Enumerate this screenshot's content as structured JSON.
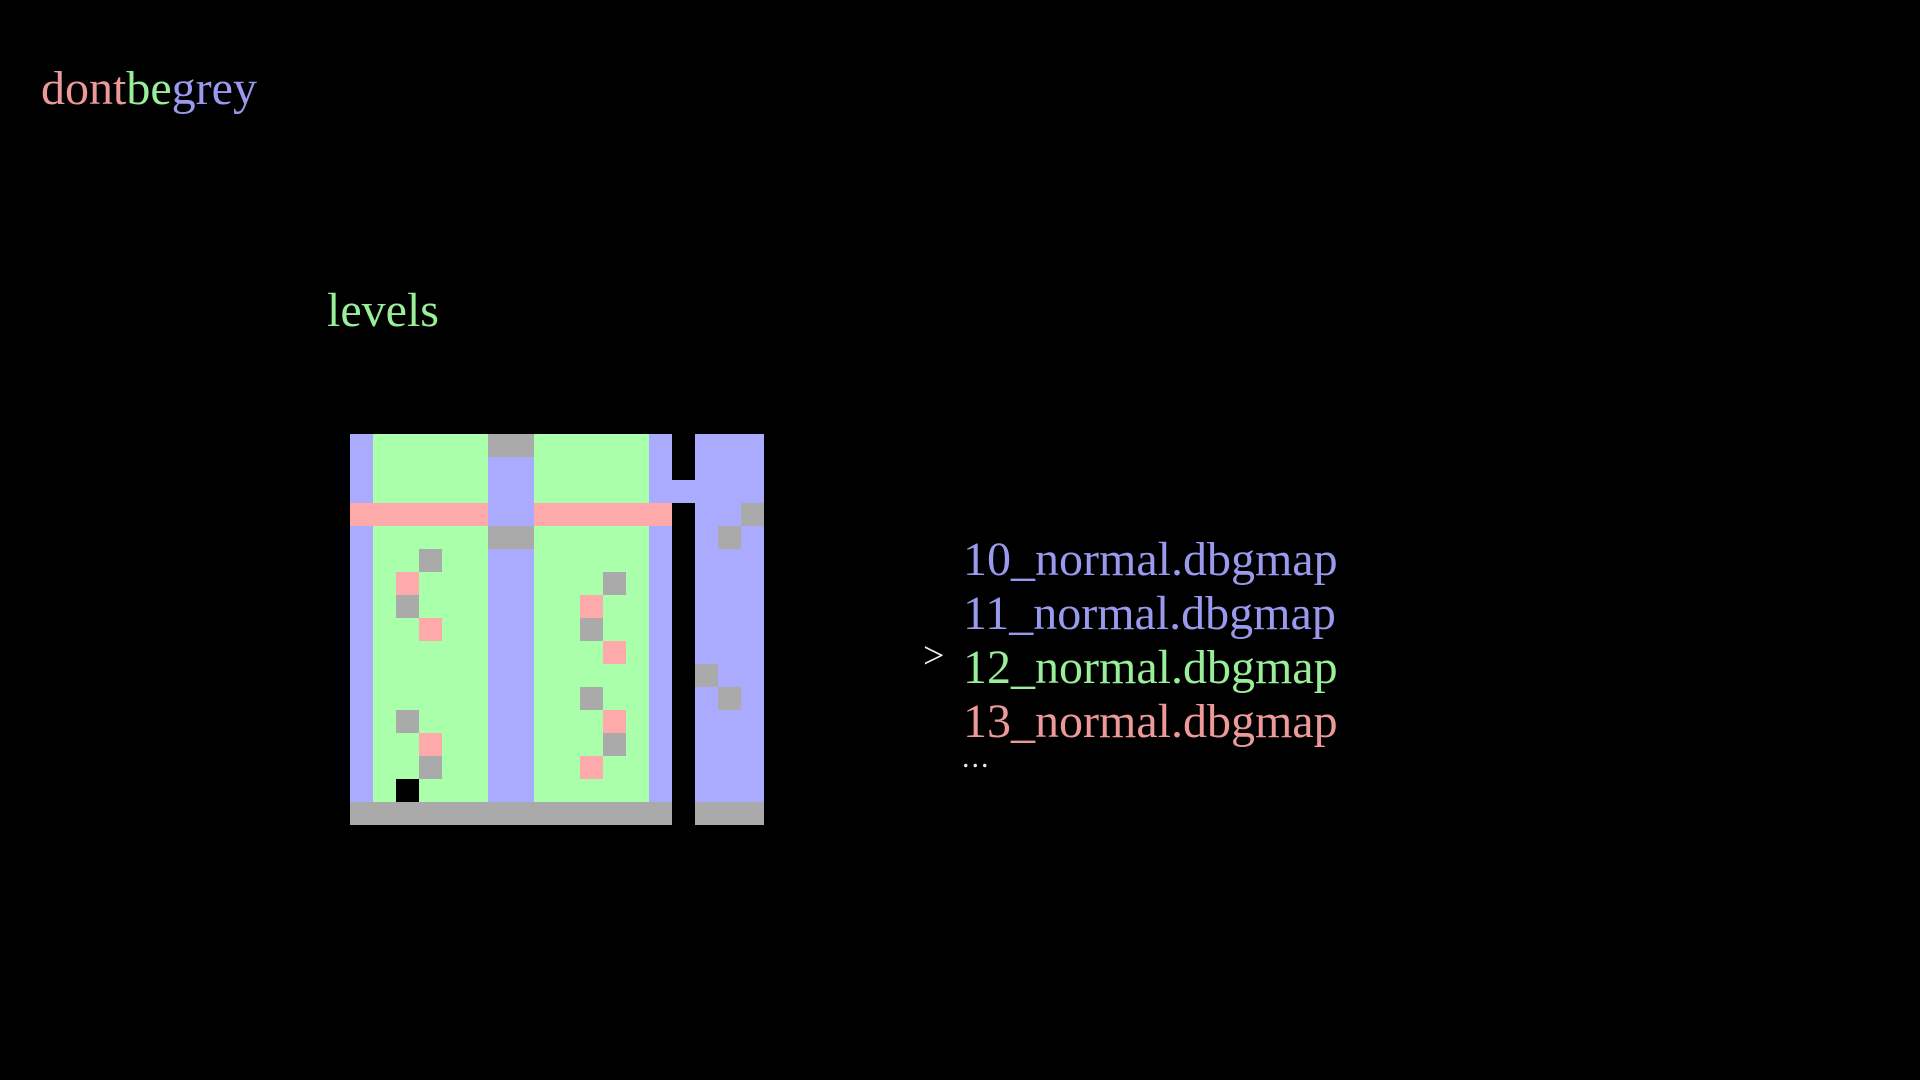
{
  "title": {
    "segments": [
      {
        "text": "dont",
        "color": "#ee9999"
      },
      {
        "text": "be",
        "color": "#99ee99"
      },
      {
        "text": "grey",
        "color": "#9999ee"
      }
    ]
  },
  "section_heading": {
    "label": "levels",
    "color": "#99ee99"
  },
  "level_list": {
    "cursor": ">",
    "cursor_color": "#f0f0f0",
    "items": [
      {
        "label": "10_normal.dbgmap",
        "color": "#9999ee",
        "selected": false
      },
      {
        "label": "11_normal.dbgmap",
        "color": "#9999ee",
        "selected": false
      },
      {
        "label": "12_normal.dbgmap",
        "color": "#99ee99",
        "selected": true
      },
      {
        "label": "13_normal.dbgmap",
        "color": "#ee9999",
        "selected": false
      }
    ],
    "more_indicator": "...",
    "more_indicator_color": "#e6e6e6"
  },
  "map_preview": {
    "cols": 18,
    "rows": 17,
    "cell_size": 23,
    "palette": {
      "B": "#aaaaff",
      "G": "#aaffaa",
      "P": "#ffaaaa",
      "Y": "#aaaaaa",
      "K": "#000000",
      ".": "transparent"
    },
    "legend": {
      "B": "blue-wall",
      "G": "green-floor",
      "P": "pink-block",
      "Y": "grey-block",
      "K": "black-cell",
      ".": "empty"
    },
    "grid": [
      "BGGGGGYYGGGGGB.BBB",
      "BGGGGGBBGGGGGB.BBB",
      "BGGGGGBBGGGGGBBBBB",
      "PPPPPPBBPPPPPP.BBY",
      "BGGGGGYYGGGGGB.BYB",
      "BGGYGGBBGGGGGB.BBB",
      "BGPGGGBBGGGYGB.BBB",
      "BGYGGGBBGGPGGB.BBB",
      "BGGPGGBBGGYGGB.BBB",
      "BGGGGGBBGGGPGB.BBB",
      "BGGGGGBBGGGGGB.YBB",
      "BGGGGGBBGGYGGB.BYB",
      "BGYGGGBBGGGPGB.BBB",
      "BGGPGGBBGGGYGB.BBB",
      "BGGYGGBBGGPGGB.BBB",
      "BGKGGGBBGGGGGB.BBB",
      "YYYYYYYYYYYYYY.YYY"
    ]
  },
  "colors": {
    "background": "#000000"
  }
}
